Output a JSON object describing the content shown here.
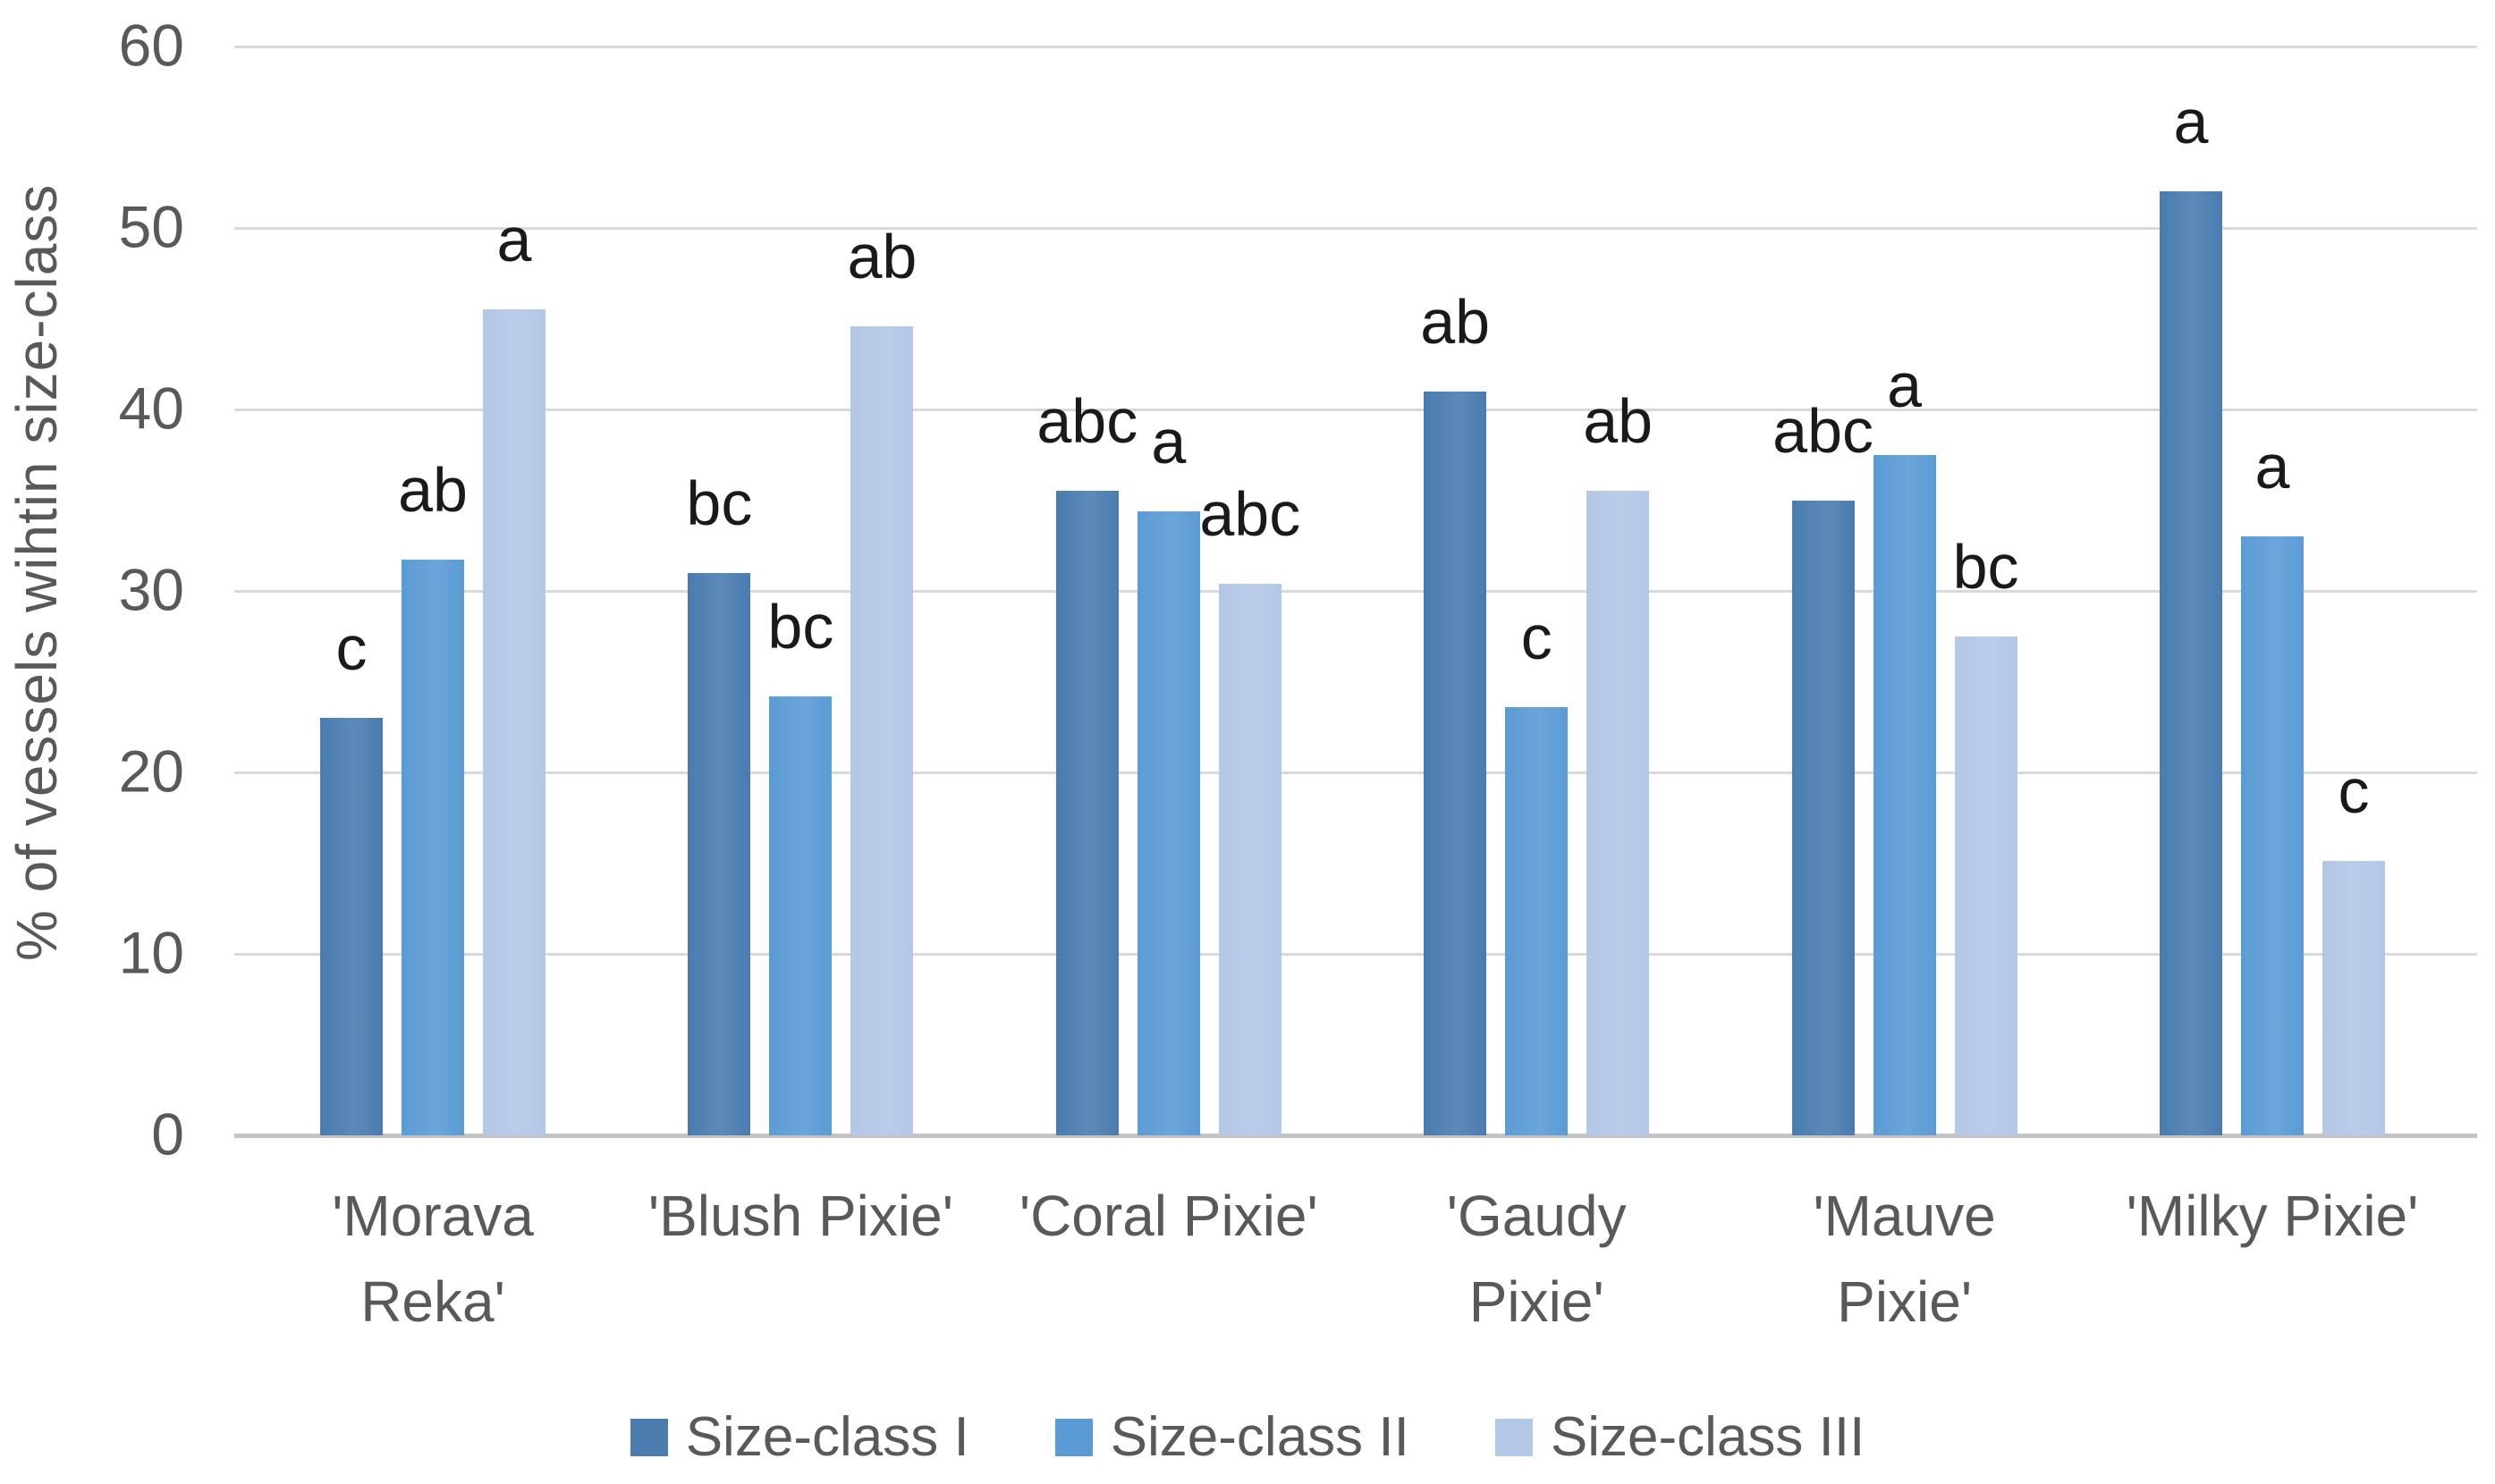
{
  "chart_data": {
    "type": "bar",
    "title": "",
    "ylabel": "% of vessels wihtin size-class",
    "xlabel": "",
    "ylim": [
      0,
      60
    ],
    "ytick_step": 10,
    "yticks": [
      "0",
      "10",
      "20",
      "30",
      "40",
      "50",
      "60"
    ],
    "grid": "horizontal",
    "legend_position": "bottom",
    "categories": [
      "'Morava Reka'",
      "'Blush Pixie'",
      "'Coral Pixie'",
      "'Gaudy Pixie'",
      "'Mauve Pixie'",
      "'Milky Pixie'"
    ],
    "series": [
      {
        "name": "Size-class I",
        "color": "#4a7cb0",
        "values": [
          23.0,
          31.0,
          35.5,
          41.0,
          35.0,
          52.0
        ],
        "sig_labels": [
          "c",
          "bc",
          "abc",
          "ab",
          "abc",
          "a"
        ]
      },
      {
        "name": "Size-class II",
        "color": "#5b9bd5",
        "values": [
          31.7,
          24.2,
          34.4,
          23.6,
          37.5,
          33.0
        ],
        "sig_labels": [
          "ab",
          "bc",
          "a",
          "c",
          "a",
          "a"
        ]
      },
      {
        "name": "Size-class III",
        "color": "#b3c7e6",
        "values": [
          45.5,
          44.6,
          30.4,
          35.5,
          27.5,
          15.1
        ],
        "sig_labels": [
          "a",
          "ab",
          "abc",
          "ab",
          "bc",
          "c"
        ]
      }
    ],
    "colors": {
      "grid_line": "#d9d9d9",
      "axis_line": "#c3c3c3",
      "axis_text": "#595959",
      "sig_label_text": "#1a1a1a"
    }
  }
}
